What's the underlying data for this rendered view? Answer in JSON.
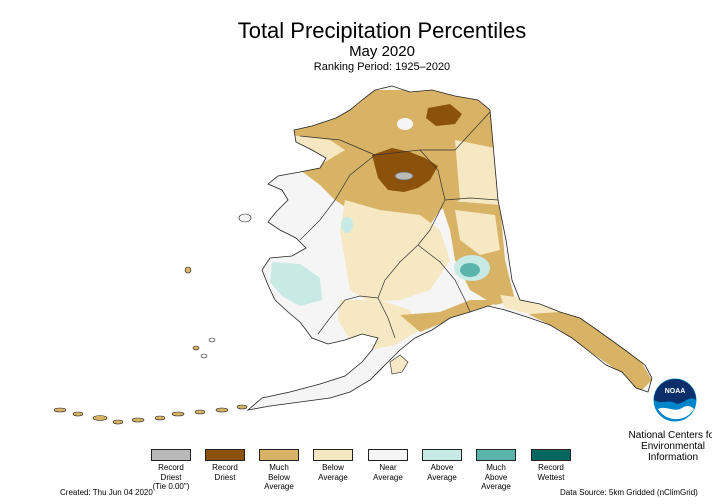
{
  "header": {
    "title": "Total Precipitation Percentiles",
    "subtitle": "May 2020",
    "period": "Ranking Period: 1925–2020"
  },
  "legend": [
    {
      "label": "Record\nDriest\n(Tie 0.00\")",
      "color": "#b9b9b9"
    },
    {
      "label": "Record\nDriest",
      "color": "#8c510a"
    },
    {
      "label": "Much\nBelow\nAverage",
      "color": "#d8b365"
    },
    {
      "label": "Below\nAverage",
      "color": "#f6e8c3"
    },
    {
      "label": "Near\nAverage",
      "color": "#f5f5f5"
    },
    {
      "label": "Above\nAverage",
      "color": "#c7eae5"
    },
    {
      "label": "Much\nAbove\nAverage",
      "color": "#5ab4ac"
    },
    {
      "label": "Record\nWettest",
      "color": "#01665e"
    }
  ],
  "footer": {
    "created": "Created: Thu Jun 04 2020",
    "source": "Data Source: 5km Gridded (nClimGrid)"
  },
  "branding": {
    "logo_text": "NOAA",
    "org": "National Centers for\nEnvironmental\nInformation"
  },
  "colors": {
    "record_dry_tie": "#b9b9b9",
    "record_dry": "#8c510a",
    "much_below": "#d8b365",
    "below": "#f6e8c3",
    "near": "#f5f5f5",
    "above": "#c7eae5",
    "much_above": "#5ab4ac",
    "record_wet": "#01665e",
    "noaa_blue": "#0085ca"
  }
}
